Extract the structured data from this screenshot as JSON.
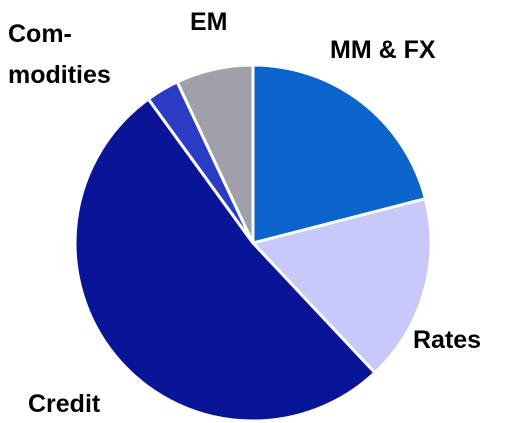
{
  "chart_data": {
    "type": "pie",
    "categories": [
      "MM & FX",
      "Rates",
      "Credit",
      "Com-\nmodities",
      "EM"
    ],
    "values": [
      21,
      17,
      52,
      3,
      7
    ],
    "colors": [
      "#0a64cc",
      "#c8c8fa",
      "#0a1496",
      "#2a3cc4",
      "#a0a0aa"
    ]
  }
}
